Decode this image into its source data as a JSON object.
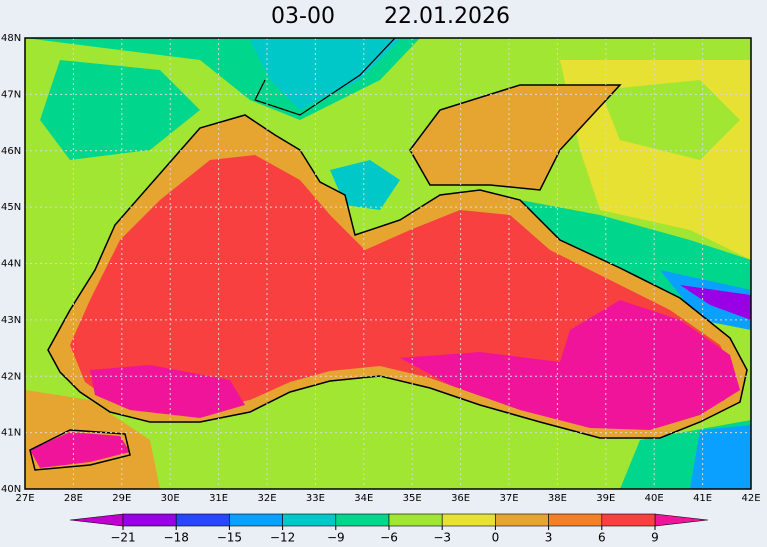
{
  "header": {
    "time": "03-00",
    "date": "22.01.2026"
  },
  "map": {
    "lon_ticks": [
      "27E",
      "28E",
      "29E",
      "30E",
      "31E",
      "32E",
      "33E",
      "34E",
      "35E",
      "36E",
      "37E",
      "38E",
      "39E",
      "40E",
      "41E",
      "42E"
    ],
    "lat_ticks": [
      "40N",
      "41N",
      "42N",
      "43N",
      "44N",
      "45N",
      "46N",
      "47N",
      "48N"
    ]
  },
  "colorbar": {
    "ticks": [
      {
        "value": -21,
        "label": "−21"
      },
      {
        "value": -18,
        "label": "−18"
      },
      {
        "value": -15,
        "label": "−15"
      },
      {
        "value": -12,
        "label": "−12"
      },
      {
        "value": -9,
        "label": "−9"
      },
      {
        "value": -6,
        "label": "−6"
      },
      {
        "value": -3,
        "label": "−3"
      },
      0,
      3,
      6,
      9
    ],
    "under_color": "#c000d0",
    "colors": [
      "#9a00e6",
      "#2846ff",
      "#0aa0ff",
      "#00c8c8",
      "#00d78c",
      "#a0e632",
      "#e6e132",
      "#e6a530",
      "#f5802a",
      "#f84040"
    ],
    "over_color": "#f0149a"
  }
}
